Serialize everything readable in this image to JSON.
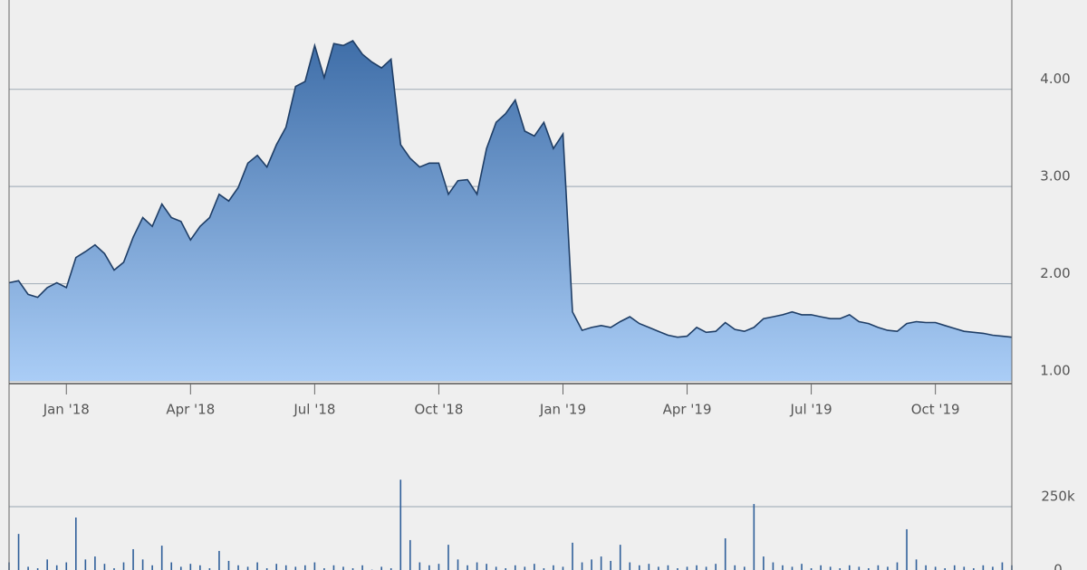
{
  "chart_data": {
    "type": "area",
    "categories": [
      null,
      null,
      null,
      null,
      null,
      null,
      "Jan '18",
      null,
      null,
      null,
      null,
      null,
      null,
      null,
      null,
      null,
      null,
      null,
      null,
      "Apr '18",
      null,
      null,
      null,
      null,
      null,
      null,
      null,
      null,
      null,
      null,
      null,
      null,
      "Jul '18",
      null,
      null,
      null,
      null,
      null,
      null,
      null,
      null,
      null,
      null,
      null,
      null,
      "Oct '18",
      null,
      null,
      null,
      null,
      null,
      null,
      null,
      null,
      null,
      null,
      null,
      null,
      "Jan '19",
      null,
      null,
      null,
      null,
      null,
      null,
      null,
      null,
      null,
      null,
      null,
      null,
      "Apr '19",
      null,
      null,
      null,
      null,
      null,
      null,
      null,
      null,
      null,
      null,
      null,
      null,
      "Jul '19",
      null,
      null,
      null,
      null,
      null,
      null,
      null,
      null,
      null,
      null,
      null,
      null,
      "Oct '19",
      null,
      null,
      null,
      null,
      null,
      null,
      null,
      null
    ],
    "series": [
      {
        "color": "#1f3e66",
        "values": [
          2.01,
          2.03,
          1.89,
          1.86,
          1.96,
          2.01,
          1.96,
          2.27,
          2.33,
          2.4,
          2.31,
          2.14,
          2.22,
          2.48,
          2.68,
          2.59,
          2.82,
          2.68,
          2.64,
          2.45,
          2.59,
          2.68,
          2.92,
          2.85,
          2.99,
          3.24,
          3.32,
          3.2,
          3.43,
          3.61,
          4.03,
          4.08,
          4.45,
          4.12,
          4.47,
          4.45,
          4.5,
          4.36,
          4.28,
          4.22,
          4.31,
          3.43,
          3.29,
          3.2,
          3.24,
          3.24,
          2.92,
          3.06,
          3.07,
          2.92,
          3.39,
          3.66,
          3.75,
          3.89,
          3.57,
          3.52,
          3.66,
          3.39,
          3.54,
          1.71,
          1.52,
          1.55,
          1.57,
          1.55,
          1.61,
          1.66,
          1.59,
          1.55,
          1.51,
          1.47,
          1.45,
          1.46,
          1.55,
          1.5,
          1.51,
          1.6,
          1.53,
          1.51,
          1.55,
          1.64,
          1.66,
          1.68,
          1.71,
          1.68,
          1.68,
          1.66,
          1.64,
          1.64,
          1.68,
          1.61,
          1.59,
          1.55,
          1.52,
          1.51,
          1.59,
          1.61,
          1.6,
          1.6,
          1.57,
          1.54,
          1.51,
          1.5,
          1.49,
          1.47,
          1.46,
          1.45
        ]
      },
      {
        "type": "bar",
        "axis": "y2",
        "color": "#2f5f9a",
        "values": [
          60000,
          157000,
          45000,
          40000,
          70000,
          50000,
          60000,
          213000,
          70000,
          80000,
          55000,
          40000,
          60000,
          105000,
          70000,
          50000,
          117000,
          60000,
          45000,
          55000,
          50000,
          40000,
          99000,
          65000,
          50000,
          45000,
          60000,
          40000,
          55000,
          50000,
          45000,
          50000,
          60000,
          40000,
          50000,
          45000,
          40000,
          50000,
          35000,
          45000,
          40000,
          342000,
          136000,
          60000,
          50000,
          55000,
          120000,
          70000,
          50000,
          60000,
          55000,
          45000,
          40000,
          50000,
          45000,
          55000,
          40000,
          50000,
          45000,
          127000,
          60000,
          70000,
          80000,
          65000,
          120000,
          60000,
          50000,
          55000,
          45000,
          50000,
          40000,
          45000,
          50000,
          45000,
          55000,
          142000,
          50000,
          45000,
          259000,
          80000,
          60000,
          50000,
          45000,
          55000,
          40000,
          50000,
          45000,
          40000,
          50000,
          45000,
          40000,
          50000,
          45000,
          60000,
          173000,
          70000,
          50000,
          45000,
          40000,
          50000,
          45000,
          40000,
          50000,
          45000,
          60000,
          50000
        ]
      }
    ],
    "ylim": [
      1,
      4.9
    ],
    "yticks": [
      {
        "value": 1,
        "label": "1.00"
      },
      {
        "value": 2,
        "label": "2.00"
      },
      {
        "value": 3,
        "label": "3.00"
      },
      {
        "value": 4,
        "label": "4.00"
      }
    ],
    "y2lim": [
      0,
      350000
    ],
    "y2ticks": [
      {
        "value": 0,
        "label": "0"
      },
      {
        "value": 250000,
        "label": "250k"
      }
    ],
    "grid": true
  }
}
